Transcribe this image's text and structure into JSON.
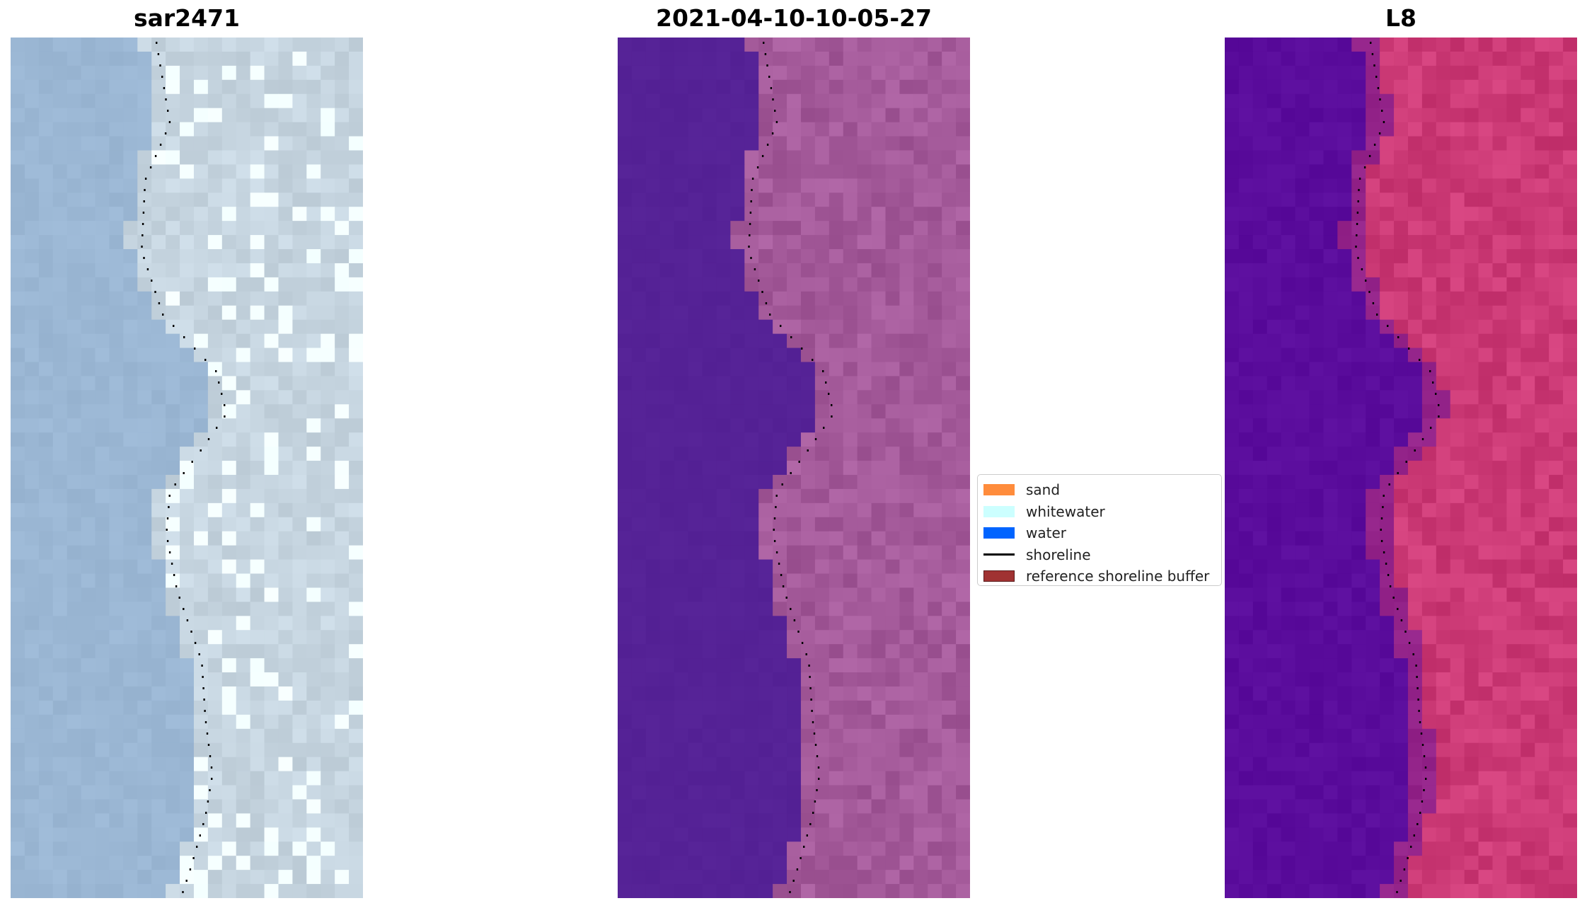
{
  "panels": [
    {
      "title": "sar2471",
      "kind": "rgb"
    },
    {
      "title": "2021-04-10-10-05-27",
      "kind": "classified"
    },
    {
      "title": "L8",
      "kind": "mndwi"
    }
  ],
  "legend": {
    "items": [
      {
        "label": "sand",
        "color": "#ff8c3c",
        "type": "patch"
      },
      {
        "label": "whitewater",
        "color": "#ccffff",
        "type": "patch"
      },
      {
        "label": "water",
        "color": "#0064ff",
        "type": "patch"
      },
      {
        "label": "shoreline",
        "color": "#000000",
        "type": "line"
      },
      {
        "label": "reference shoreline buffer",
        "color": "#a03232",
        "type": "patch-edged"
      }
    ]
  },
  "colors": {
    "rgb_water": "#9bb7d4",
    "rgb_land": "#c8d7e2",
    "classified_water": "#552296",
    "classified_land": "#a45a9a",
    "mndwi_water": "#5a0c9c",
    "mndwi_land": "#cc3a76",
    "shoreline": "#000000"
  }
}
